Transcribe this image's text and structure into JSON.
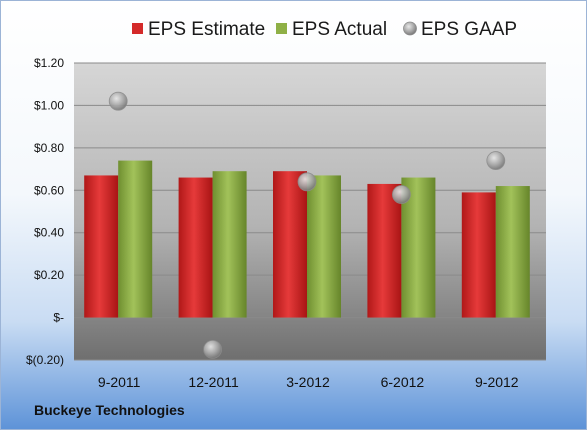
{
  "company": "Buckeye Technologies",
  "colors": {
    "estimate": "#d42a2a",
    "actual": "#8fb046",
    "gaap": "#a9a9a9"
  },
  "chart_data": {
    "type": "bar",
    "categories": [
      "9-2011",
      "12-2011",
      "3-2012",
      "6-2012",
      "9-2012"
    ],
    "series": [
      {
        "name": "EPS Estimate",
        "kind": "bar",
        "values": [
          0.67,
          0.66,
          0.69,
          0.63,
          0.59
        ]
      },
      {
        "name": "EPS Actual",
        "kind": "bar",
        "values": [
          0.74,
          0.69,
          0.67,
          0.66,
          0.62
        ]
      },
      {
        "name": "EPS GAAP",
        "kind": "scatter",
        "values": [
          1.02,
          -0.15,
          0.64,
          0.58,
          0.74
        ]
      }
    ],
    "ylim": [
      -0.2,
      1.2
    ],
    "yticks": [
      1.2,
      1.0,
      0.8,
      0.6,
      0.4,
      0.2,
      0,
      -0.2
    ],
    "ytick_labels": [
      "$1.20",
      "$1.00",
      "$0.80",
      "$0.60",
      "$0.40",
      "$0.20",
      "$-",
      "$(0.20)"
    ],
    "grid": true,
    "legend": "top"
  }
}
